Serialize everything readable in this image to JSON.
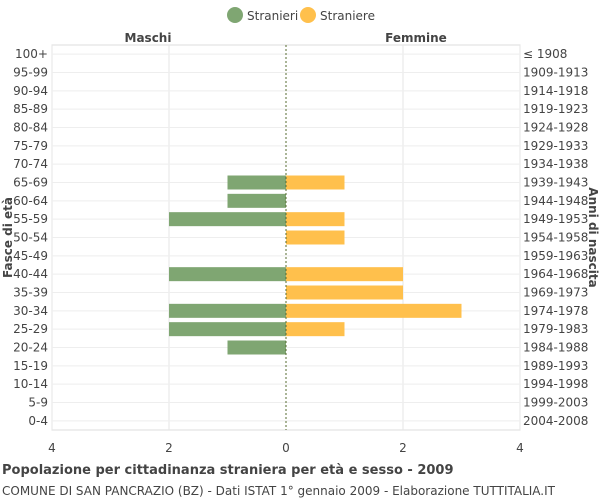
{
  "chart_data": {
    "type": "bar",
    "orientation": "horizontal",
    "title": "Popolazione per cittadinanza straniera per età e sesso - 2009",
    "subtitle": "COMUNE DI SAN PANCRAZIO (BZ) - Dati ISTAT 1° gennaio 2009 - Elaborazione TUTTITALIA.IT",
    "left_header": "Maschi",
    "right_header": "Femmine",
    "ylabel_left": "Fasce di età",
    "ylabel_right": "Anni di nascita",
    "legend": [
      {
        "name": "Stranieri",
        "color": "#7fa672"
      },
      {
        "name": "Straniere",
        "color": "#ffc04c"
      }
    ],
    "categories": [
      "100+",
      "95-99",
      "90-94",
      "85-89",
      "80-84",
      "75-79",
      "70-74",
      "65-69",
      "60-64",
      "55-59",
      "50-54",
      "45-49",
      "40-44",
      "35-39",
      "30-34",
      "25-29",
      "20-24",
      "15-19",
      "10-14",
      "5-9",
      "0-4"
    ],
    "birth_years": [
      "≤ 1908",
      "1909-1913",
      "1914-1918",
      "1919-1923",
      "1924-1928",
      "1929-1933",
      "1934-1938",
      "1939-1943",
      "1944-1948",
      "1949-1953",
      "1954-1958",
      "1959-1963",
      "1964-1968",
      "1969-1973",
      "1974-1978",
      "1979-1983",
      "1984-1988",
      "1989-1993",
      "1994-1998",
      "1999-2003",
      "2004-2008"
    ],
    "series": [
      {
        "name": "Stranieri",
        "values": [
          0,
          0,
          0,
          0,
          0,
          0,
          0,
          1,
          1,
          2,
          0,
          0,
          2,
          0,
          2,
          2,
          1,
          0,
          0,
          0,
          0
        ]
      },
      {
        "name": "Straniere",
        "values": [
          0,
          0,
          0,
          0,
          0,
          0,
          0,
          1,
          0,
          1,
          1,
          0,
          2,
          2,
          3,
          1,
          0,
          0,
          0,
          0,
          0
        ]
      }
    ],
    "xlim": [
      -4,
      4
    ],
    "xticks": [
      "4",
      "2",
      "0",
      "2",
      "4"
    ],
    "grid": true
  }
}
